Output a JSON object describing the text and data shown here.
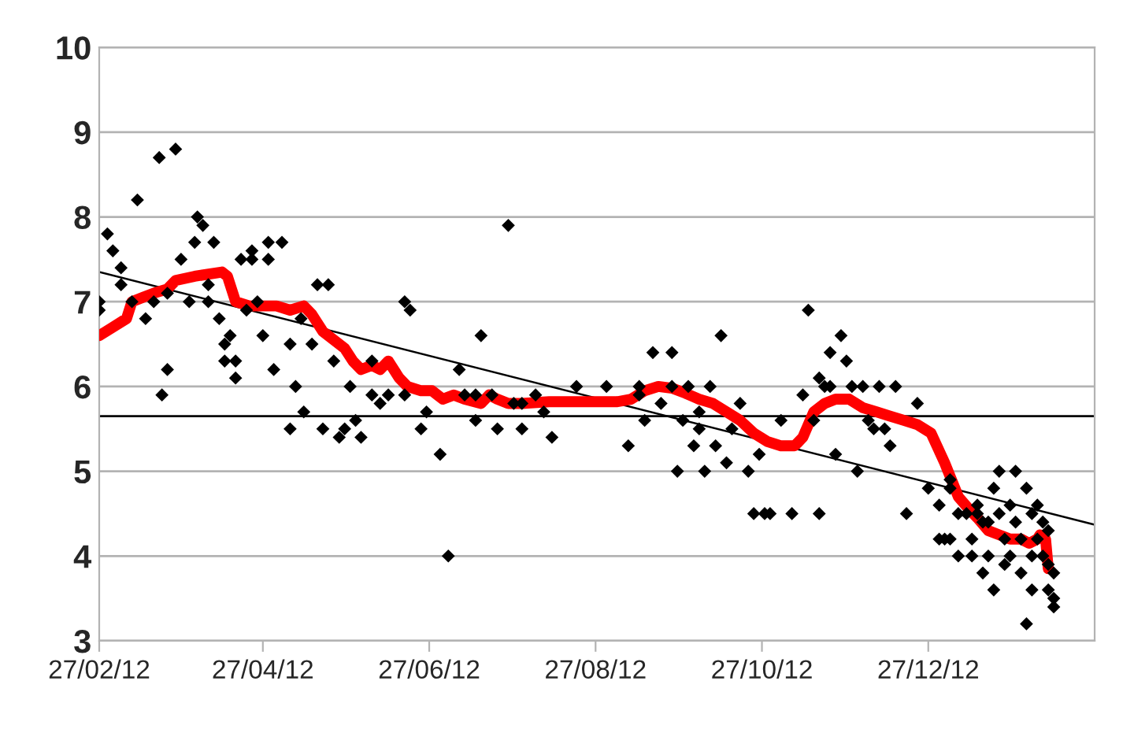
{
  "chart_data": {
    "type": "scatter",
    "series": [
      {
        "color": "#000000",
        "marker": "diamond",
        "x": [
          "2012-02-27",
          "2012-02-27",
          "2012-03-01",
          "2012-03-03",
          "2012-03-06",
          "2012-03-06",
          "2012-03-10",
          "2012-03-12",
          "2012-03-15",
          "2012-03-18",
          "2012-03-20",
          "2012-03-21",
          "2012-03-23",
          "2012-03-23",
          "2012-03-26",
          "2012-03-28",
          "2012-03-31",
          "2012-04-02",
          "2012-04-03",
          "2012-04-05",
          "2012-04-07",
          "2012-04-07",
          "2012-04-09",
          "2012-04-11",
          "2012-04-13",
          "2012-04-13",
          "2012-04-15",
          "2012-04-17",
          "2012-04-17",
          "2012-04-19",
          "2012-04-21",
          "2012-04-23",
          "2012-04-23",
          "2012-04-25",
          "2012-04-27",
          "2012-04-29",
          "2012-04-29",
          "2012-05-01",
          "2012-05-04",
          "2012-05-07",
          "2012-05-07",
          "2012-05-09",
          "2012-05-11",
          "2012-05-12",
          "2012-05-15",
          "2012-05-17",
          "2012-05-19",
          "2012-05-21",
          "2012-05-23",
          "2012-05-25",
          "2012-05-27",
          "2012-05-29",
          "2012-05-31",
          "2012-06-02",
          "2012-06-06",
          "2012-06-06",
          "2012-06-09",
          "2012-06-12",
          "2012-06-18",
          "2012-06-18",
          "2012-06-20",
          "2012-06-24",
          "2012-06-26",
          "2012-07-01",
          "2012-07-04",
          "2012-07-08",
          "2012-07-10",
          "2012-07-14",
          "2012-07-14",
          "2012-07-16",
          "2012-07-20",
          "2012-07-22",
          "2012-07-26",
          "2012-07-28",
          "2012-07-31",
          "2012-07-31",
          "2012-08-05",
          "2012-08-08",
          "2012-08-11",
          "2012-08-20",
          "2012-08-31",
          "2012-09-08",
          "2012-09-12",
          "2012-09-12",
          "2012-09-14",
          "2012-09-17",
          "2012-09-20",
          "2012-09-24",
          "2012-09-24",
          "2012-09-26",
          "2012-09-28",
          "2012-09-30",
          "2012-10-02",
          "2012-10-04",
          "2012-10-04",
          "2012-10-06",
          "2012-10-08",
          "2012-10-10",
          "2012-10-12",
          "2012-10-14",
          "2012-10-16",
          "2012-10-19",
          "2012-10-22",
          "2012-10-24",
          "2012-10-26",
          "2012-10-28",
          "2012-10-30",
          "2012-11-03",
          "2012-11-07",
          "2012-11-11",
          "2012-11-13",
          "2012-11-15",
          "2012-11-17",
          "2012-11-17",
          "2012-11-19",
          "2012-11-21",
          "2012-11-21",
          "2012-11-23",
          "2012-11-25",
          "2012-11-27",
          "2012-11-29",
          "2012-12-01",
          "2012-12-03",
          "2012-12-05",
          "2012-12-07",
          "2012-12-09",
          "2012-12-11",
          "2012-12-13",
          "2012-12-15",
          "2012-12-19",
          "2012-12-23",
          "2012-12-27",
          "2012-12-31",
          "2012-12-31",
          "2013-01-02",
          "2013-01-04",
          "2013-01-04",
          "2013-01-04",
          "2013-01-07",
          "2013-01-07",
          "2013-01-10",
          "2013-01-12",
          "2013-01-12",
          "2013-01-14",
          "2013-01-14",
          "2013-01-16",
          "2013-01-16",
          "2013-01-18",
          "2013-01-18",
          "2013-01-20",
          "2013-01-20",
          "2013-01-22",
          "2013-01-22",
          "2013-01-24",
          "2013-01-24",
          "2013-01-26",
          "2013-01-26",
          "2013-01-28",
          "2013-01-28",
          "2013-01-30",
          "2013-01-30",
          "2013-02-01",
          "2013-02-01",
          "2013-02-03",
          "2013-02-03",
          "2013-02-03",
          "2013-02-05",
          "2013-02-05",
          "2013-02-07",
          "2013-02-07",
          "2013-02-09",
          "2013-02-09",
          "2013-02-09",
          "2013-02-11",
          "2013-02-11",
          "2013-02-11"
        ],
        "values": [
          6.9,
          7.0,
          7.8,
          7.6,
          7.2,
          7.4,
          7.0,
          8.2,
          6.8,
          7.0,
          8.7,
          5.9,
          7.1,
          6.2,
          8.8,
          7.5,
          7.0,
          7.7,
          8.0,
          7.9,
          7.2,
          7.0,
          7.7,
          6.8,
          6.5,
          6.3,
          6.6,
          6.1,
          6.3,
          7.5,
          6.9,
          7.5,
          7.6,
          7.0,
          6.6,
          7.7,
          7.5,
          6.2,
          7.7,
          5.5,
          6.5,
          6.0,
          6.8,
          5.7,
          6.5,
          7.2,
          5.5,
          7.2,
          6.3,
          5.4,
          5.5,
          6.0,
          5.6,
          5.4,
          6.3,
          5.9,
          5.8,
          5.9,
          7.0,
          5.9,
          6.9,
          5.5,
          5.7,
          5.2,
          4.0,
          6.2,
          5.9,
          5.6,
          5.9,
          6.6,
          5.9,
          5.5,
          7.9,
          5.8,
          5.8,
          5.5,
          5.9,
          5.7,
          5.4,
          6.0,
          6.0,
          5.3,
          5.9,
          6.0,
          5.6,
          6.4,
          5.8,
          6.0,
          6.4,
          5.0,
          5.6,
          6.0,
          5.3,
          5.7,
          5.5,
          5.0,
          6.0,
          5.3,
          6.6,
          5.1,
          5.5,
          5.8,
          5.0,
          4.5,
          5.2,
          4.5,
          4.5,
          5.6,
          4.5,
          5.9,
          6.9,
          5.6,
          6.1,
          4.5,
          6.0,
          6.4,
          6.0,
          5.2,
          6.6,
          6.3,
          6.0,
          5.0,
          6.0,
          5.6,
          5.5,
          6.0,
          5.5,
          5.3,
          6.0,
          4.5,
          5.8,
          4.8,
          4.2,
          4.6,
          4.2,
          4.8,
          4.9,
          4.2,
          4.0,
          4.5,
          4.5,
          4.2,
          4.0,
          4.6,
          4.5,
          3.8,
          4.4,
          4.4,
          4.0,
          4.8,
          3.6,
          5.0,
          4.5,
          4.2,
          3.9,
          4.6,
          4.0,
          5.0,
          4.4,
          4.2,
          3.8,
          3.2,
          4.8,
          4.5,
          4.0,
          3.6,
          4.6,
          4.2,
          4.4,
          4.0,
          4.3,
          3.9,
          3.6,
          3.8,
          3.5,
          3.4
        ]
      },
      {
        "type": "line",
        "color": "#ff0000",
        "x": [
          "2012-02-27",
          "2012-03-03",
          "2012-03-08",
          "2012-03-10",
          "2012-03-14",
          "2012-03-18",
          "2012-03-23",
          "2012-03-26",
          "2012-04-02",
          "2012-04-12",
          "2012-04-14",
          "2012-04-17",
          "2012-04-22",
          "2012-05-02",
          "2012-05-07",
          "2012-05-12",
          "2012-05-15",
          "2012-05-19",
          "2012-05-23",
          "2012-05-27",
          "2012-05-30",
          "2012-06-02",
          "2012-06-06",
          "2012-06-09",
          "2012-06-12",
          "2012-06-16",
          "2012-06-19",
          "2012-06-24",
          "2012-06-28",
          "2012-07-02",
          "2012-07-06",
          "2012-07-10",
          "2012-07-16",
          "2012-07-19",
          "2012-07-22",
          "2012-07-26",
          "2012-07-31",
          "2012-08-10",
          "2012-08-25",
          "2012-09-04",
          "2012-09-09",
          "2012-09-14",
          "2012-09-19",
          "2012-09-24",
          "2012-09-29",
          "2012-10-04",
          "2012-10-09",
          "2012-10-14",
          "2012-10-19",
          "2012-10-24",
          "2012-10-29",
          "2012-11-03",
          "2012-11-08",
          "2012-11-11",
          "2012-11-15",
          "2012-11-19",
          "2012-11-23",
          "2012-11-28",
          "2012-12-03",
          "2012-12-08",
          "2012-12-13",
          "2012-12-18",
          "2012-12-23",
          "2012-12-28",
          "2013-01-02",
          "2013-01-07",
          "2013-01-11",
          "2013-01-14",
          "2013-01-18",
          "2013-01-22",
          "2013-01-26",
          "2013-01-30",
          "2013-02-02",
          "2013-02-05",
          "2013-02-06",
          "2013-02-08",
          "2013-02-09"
        ],
        "values": [
          6.6,
          6.7,
          6.8,
          7.0,
          7.05,
          7.1,
          7.15,
          7.25,
          7.3,
          7.35,
          7.3,
          7.0,
          6.95,
          6.95,
          6.9,
          6.95,
          6.85,
          6.65,
          6.55,
          6.45,
          6.3,
          6.2,
          6.25,
          6.2,
          6.3,
          6.1,
          6.0,
          5.95,
          5.95,
          5.85,
          5.9,
          5.85,
          5.8,
          5.9,
          5.85,
          5.8,
          5.8,
          5.82,
          5.82,
          5.82,
          5.85,
          5.95,
          6.0,
          5.98,
          5.92,
          5.85,
          5.8,
          5.7,
          5.6,
          5.45,
          5.35,
          5.3,
          5.3,
          5.4,
          5.7,
          5.8,
          5.85,
          5.85,
          5.75,
          5.7,
          5.65,
          5.6,
          5.55,
          5.45,
          5.1,
          4.7,
          4.55,
          4.45,
          4.3,
          4.25,
          4.2,
          4.2,
          4.15,
          4.2,
          4.25,
          4.2,
          3.85
        ]
      },
      {
        "type": "line",
        "color": "#000000",
        "x": [
          "2012-02-27",
          "2013-02-26"
        ],
        "values": [
          7.35,
          4.37
        ]
      }
    ],
    "ref_lines": [
      {
        "axis": "y",
        "value": 5.65,
        "color": "#000000"
      }
    ],
    "xlim": [
      "2012-02-27",
      "2013-02-26"
    ],
    "xticks": [
      {
        "value": "2012-02-27",
        "label": "27/02/12"
      },
      {
        "value": "2012-04-27",
        "label": "27/04/12"
      },
      {
        "value": "2012-06-27",
        "label": "27/06/12"
      },
      {
        "value": "2012-08-27",
        "label": "27/08/12"
      },
      {
        "value": "2012-10-27",
        "label": "27/10/12"
      },
      {
        "value": "2012-12-27",
        "label": "27/12/12"
      }
    ],
    "ylim": [
      3,
      10
    ],
    "yticks": [
      3,
      4,
      5,
      6,
      7,
      8,
      9,
      10
    ],
    "grid": "y",
    "legend": false
  }
}
